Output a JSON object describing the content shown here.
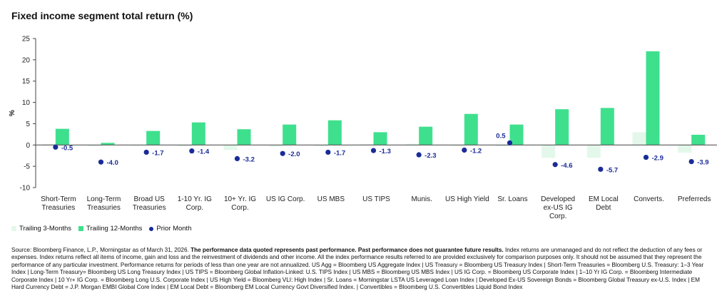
{
  "title": "Fixed income segment total return (%)",
  "colors": {
    "trailing_3m": "#e3f8ea",
    "trailing_12m": "#3ee08d",
    "prior_month": "#1a2b99",
    "axis": "#444444"
  },
  "legend": {
    "trailing_3m": "Trailing 3-Months",
    "trailing_12m": "Trailing 12-Months",
    "prior_month": "Prior Month"
  },
  "source": {
    "intro": "Source: Bloomberg Finance, L.P., Morningstar as of March 31, 2026.",
    "bold": "The performance data quoted represents past performance. Past performance does not guarantee future results.",
    "rest": "Index returns are unmanaged and do not reflect the deduction of any fees or expenses. Index returns reflect all items of income, gain and loss and the reinvestment of dividends and other income. All the index performance results referred to are provided exclusively for comparison purposes only. It should not be assumed that they represent the performance of any particular investment. Performance returns for periods of less than one year are not annualized. US Agg = Bloomberg US Aggregate Index | US Treasury = Bloomberg US Treasury Index | Short-Term Treasuries = Bloomberg U.S. Treasury: 1–3 Year Index | Long-Term Treasury= Bloomberg US Long Treasury Index | US TIPS = Bloomberg Global Inflation-Linked: U.S. TIPS Index | US MBS = Bloomberg US MBS Index | US IG Corp. = Bloomberg US Corporate Index | 1–10 Yr IG Corp. = Bloomberg Intermediate Corporate Index | 10 Yr+ IG Corp. = Bloomberg Long U.S. Corporate Index | US High Yield = Bloomberg VLI: High Index | Sr. Loans = Morningstar LSTA US Leveraged Loan Index | Developed Ex-US Sovereign Bonds = Bloomberg Global Treasury ex-U.S. Index | EM Hard Currency Debt = J.P. Morgan EMBI Global Core Index | EM Local Debt = Bloomberg EM Local Currency Govt Diversified Index. | Convertibles = Bloomberg U.S. Convertibles Liquid Bond Index"
  },
  "chart_data": {
    "type": "bar",
    "title": "Fixed income segment total return (%)",
    "ylabel": "%",
    "ylim": [
      -10,
      25
    ],
    "yticks": [
      -10,
      -5,
      0,
      5,
      10,
      15,
      20,
      25
    ],
    "grid": false,
    "legend_position": "bottom-left",
    "categories": [
      [
        "Short-Term",
        "Treasuries"
      ],
      [
        "Long-Term",
        "Treasuries"
      ],
      [
        "Broad US",
        "Treasuries"
      ],
      [
        "1-10 Yr. IG",
        "Corp."
      ],
      [
        "10+ Yr. IG",
        "Corp."
      ],
      [
        "US IG Corp."
      ],
      [
        "US MBS"
      ],
      [
        "US TIPS"
      ],
      [
        "Munis."
      ],
      [
        "US High Yield"
      ],
      [
        "Sr. Loans"
      ],
      [
        "Developed",
        "ex-US IG",
        "Corp."
      ],
      [
        "EM Local",
        "Debt"
      ],
      [
        "Converts."
      ],
      [
        "Preferreds"
      ]
    ],
    "series": [
      {
        "name": "Trailing 3-Months",
        "kind": "bar",
        "values": [
          0.2,
          -0.3,
          -0.2,
          -0.3,
          -1.2,
          -0.4,
          -0.3,
          0.2,
          0.3,
          -0.2,
          -0.3,
          -3.0,
          -3.0,
          3.0,
          -1.8
        ]
      },
      {
        "name": "Trailing 12-Months",
        "kind": "bar",
        "values": [
          3.8,
          0.5,
          3.3,
          5.3,
          3.7,
          4.8,
          5.8,
          3.0,
          4.3,
          7.3,
          4.8,
          8.4,
          8.7,
          22.0,
          2.4
        ]
      },
      {
        "name": "Prior Month",
        "kind": "marker",
        "values": [
          -0.5,
          -4.0,
          -1.7,
          -1.4,
          -3.2,
          -2.0,
          -1.7,
          -1.3,
          -2.3,
          -1.2,
          0.5,
          -4.6,
          -5.7,
          -2.9,
          -3.9
        ],
        "labels": [
          "-0.5",
          "-4.0",
          "-1.7",
          "-1.4",
          "-3.2",
          "-2.0",
          "-1.7",
          "-1.3",
          "-2.3",
          "-1.2",
          "0.5",
          "-4.6",
          "-5.7",
          "-2.9",
          "-3.9"
        ]
      }
    ]
  }
}
